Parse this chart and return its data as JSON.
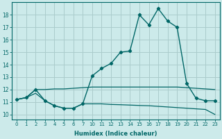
{
  "xlabel": "Humidex (Indice chaleur)",
  "bg_color": "#cceaea",
  "grid_color": "#aacccc",
  "line_color": "#006666",
  "xlim": [
    -0.5,
    21.5
  ],
  "ylim": [
    9.6,
    19.0
  ],
  "xtick_positions": [
    0,
    1,
    2,
    3,
    4,
    5,
    6,
    7,
    8,
    9,
    10,
    11,
    12,
    13,
    14,
    15,
    16,
    17,
    18,
    19,
    20,
    21
  ],
  "xtick_labels": [
    "0",
    "1",
    "2",
    "3",
    "4",
    "5",
    "6",
    "7",
    "10",
    "11",
    "12",
    "13",
    "14",
    "15",
    "16",
    "17",
    "18",
    "19",
    "20",
    "21",
    "22",
    "23"
  ],
  "yticks": [
    10,
    11,
    12,
    13,
    14,
    15,
    16,
    17,
    18
  ],
  "series1_x": [
    0,
    1,
    2,
    3,
    4,
    5,
    6,
    7,
    8,
    9,
    10,
    11,
    12,
    13,
    14,
    15,
    16,
    17,
    18,
    19,
    20,
    21
  ],
  "series1_y": [
    11.2,
    11.35,
    12.0,
    12.0,
    12.05,
    12.05,
    12.1,
    12.15,
    12.2,
    12.2,
    12.2,
    12.2,
    12.2,
    12.2,
    12.2,
    12.2,
    12.2,
    12.2,
    12.15,
    12.1,
    12.05,
    12.0
  ],
  "series2_x": [
    0,
    1,
    2,
    3,
    4,
    5,
    6,
    7,
    8,
    9,
    10,
    11,
    12,
    13,
    14,
    15,
    16,
    17,
    18,
    19,
    20,
    21
  ],
  "series2_y": [
    11.2,
    11.35,
    11.7,
    11.1,
    10.7,
    10.5,
    10.5,
    10.85,
    10.85,
    10.85,
    10.8,
    10.78,
    10.75,
    10.72,
    10.7,
    10.65,
    10.6,
    10.55,
    10.5,
    10.45,
    10.4,
    10.0
  ],
  "series3_x": [
    0,
    1,
    2,
    3,
    4,
    5,
    6,
    7,
    8,
    9,
    10,
    11,
    12,
    13,
    14,
    15,
    16,
    17,
    18,
    19,
    20,
    21
  ],
  "series3_y": [
    11.2,
    11.35,
    12.0,
    11.1,
    10.7,
    10.5,
    10.5,
    10.85,
    13.1,
    13.7,
    14.1,
    15.0,
    15.1,
    18.0,
    17.2,
    18.5,
    17.5,
    17.0,
    12.5,
    11.3,
    11.1,
    11.1
  ]
}
